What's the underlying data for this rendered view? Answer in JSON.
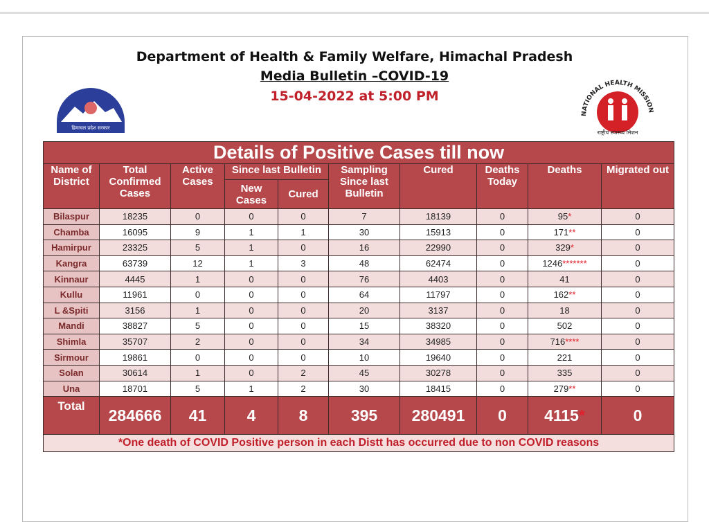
{
  "header": {
    "title": "Department of Health & Family Welfare, Himachal Pradesh",
    "subtitle": "Media Bulletin –COVID-19",
    "date": "15-04-2022 at 5:00 PM",
    "left_logo_text": "हिमाचल प्रदेश सरकार",
    "right_logo_text": "NATIONAL HEALTH MISSION",
    "right_logo_subtext": "राष्ट्रीय स्वास्थ्य मिशन"
  },
  "table": {
    "title": "Details of Positive Cases till now",
    "columns": [
      "Name of District",
      "Total Confirmed Cases",
      "Active Cases",
      "Since last Bulletin",
      "Sampling Since last Bulletin",
      "Cured",
      "Deaths Today",
      "Deaths",
      "Migrated out"
    ],
    "subcolumns": [
      "New Cases",
      "Cured"
    ],
    "rows": [
      [
        "Bilaspur",
        "18235",
        "0",
        "0",
        "0",
        "7",
        "18139",
        "0",
        [
          "95",
          "*"
        ],
        "0"
      ],
      [
        "Chamba",
        "16095",
        "9",
        "1",
        "1",
        "30",
        "15913",
        "0",
        [
          "171",
          "**"
        ],
        "0"
      ],
      [
        "Hamirpur",
        "23325",
        "5",
        "1",
        "0",
        "16",
        "22990",
        "0",
        [
          "329",
          "*"
        ],
        "0"
      ],
      [
        "Kangra",
        "63739",
        "12",
        "1",
        "3",
        "48",
        "62474",
        "0",
        [
          "1246",
          "*******"
        ],
        "0"
      ],
      [
        "Kinnaur",
        "4445",
        "1",
        "0",
        "0",
        "76",
        "4403",
        "0",
        "41",
        "0"
      ],
      [
        "Kullu",
        "11961",
        "0",
        "0",
        "0",
        "64",
        "11797",
        "0",
        [
          "162",
          "**"
        ],
        "0"
      ],
      [
        "L &Spiti",
        "3156",
        "1",
        "0",
        "0",
        "20",
        "3137",
        "0",
        "18",
        "0"
      ],
      [
        "Mandi",
        "38827",
        "5",
        "0",
        "0",
        "15",
        "38320",
        "0",
        "502",
        "0"
      ],
      [
        "Shimla",
        "35707",
        "2",
        "0",
        "0",
        "34",
        "34985",
        "0",
        [
          "716",
          "****"
        ],
        "0"
      ],
      [
        "Sirmour",
        "19861",
        "0",
        "0",
        "0",
        "10",
        "19640",
        "0",
        "221",
        "0"
      ],
      [
        "Solan",
        "30614",
        "1",
        "0",
        "2",
        "45",
        "30278",
        "0",
        "335",
        "0"
      ],
      [
        "Una",
        "18701",
        "5",
        "1",
        "2",
        "30",
        "18415",
        "0",
        [
          "279",
          "**"
        ],
        "0"
      ]
    ],
    "total": [
      "Total",
      "284666",
      "41",
      "4",
      "8",
      "395",
      "280491",
      "0",
      [
        "4115",
        "*"
      ],
      "0"
    ],
    "footnote": "*One death of COVID Positive person in each Distt has occurred due to non COVID reasons"
  }
}
